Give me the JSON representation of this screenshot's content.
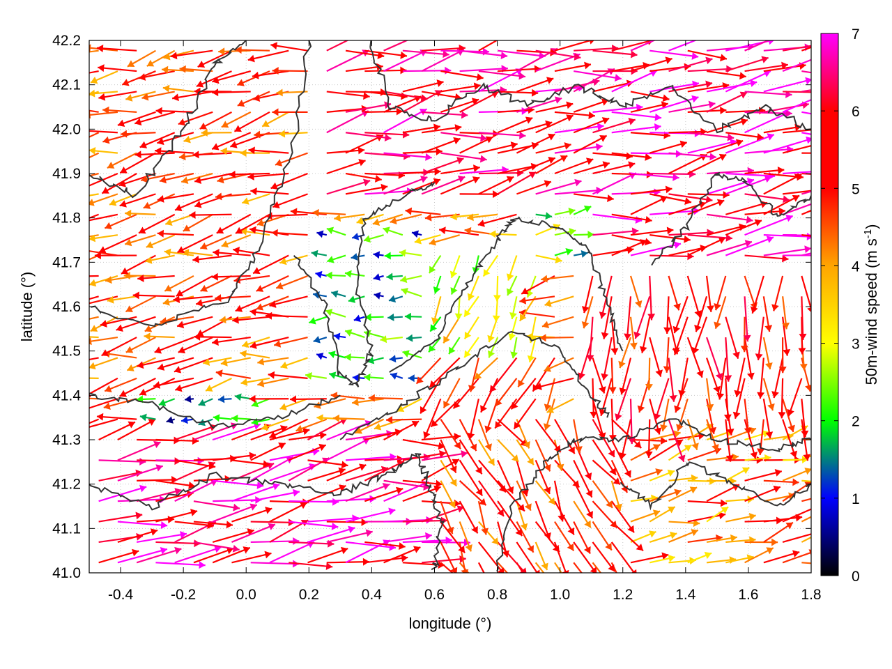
{
  "chart_data": {
    "type": "quiver",
    "xlabel": "longitude (°)",
    "ylabel": "latitude (°)",
    "xlim": [
      -0.5,
      1.8
    ],
    "ylim": [
      41.0,
      42.2
    ],
    "xticks": [
      -0.4,
      -0.2,
      0.0,
      0.2,
      0.4,
      0.6,
      0.8,
      1.0,
      1.2,
      1.4,
      1.6,
      1.8
    ],
    "xtick_labels": [
      "-0.4",
      "-0.2",
      "0.0",
      "0.2",
      "0.4",
      "0.6",
      "0.8",
      "1.0",
      "1.2",
      "1.4",
      "1.6",
      "1.8"
    ],
    "yticks": [
      41.0,
      41.1,
      41.2,
      41.3,
      41.4,
      41.5,
      41.6,
      41.7,
      41.8,
      41.9,
      42.0,
      42.1,
      42.2
    ],
    "ytick_labels": [
      "41.0",
      "41.1",
      "41.2",
      "41.3",
      "41.4",
      "41.5",
      "41.6",
      "41.7",
      "41.8",
      "41.9",
      "42.0",
      "42.1",
      "42.2"
    ],
    "grid": true,
    "colorbar": {
      "label": "50m-wind speed (m s",
      "label_exponent": "-1",
      "label_close": ")",
      "range": [
        0,
        7
      ],
      "ticks": [
        0,
        1,
        2,
        3,
        4,
        5,
        6,
        7
      ],
      "tick_labels": [
        "0",
        "1",
        "2",
        "3",
        "4",
        "5",
        "6",
        "7"
      ],
      "colormap": [
        "#000000",
        "#0000ff",
        "#00ff00",
        "#ffff00",
        "#ffa500",
        "#ff0000",
        "#ff00ff"
      ]
    },
    "contour_color": "#333333",
    "vectors_summary": {
      "description_free": true,
      "regions": [
        {
          "lon": [
            -0.5,
            0.3
          ],
          "lat": [
            41.0,
            42.2
          ],
          "dir_deg": 190,
          "speed": 4.8
        },
        {
          "lon": [
            -0.3,
            0.1
          ],
          "lat": [
            41.28,
            41.4
          ],
          "dir_deg": 185,
          "speed": 1.3
        },
        {
          "lon": [
            0.25,
            0.6
          ],
          "lat": [
            41.4,
            41.8
          ],
          "dir_deg": 180,
          "speed": 1.8
        },
        {
          "lon": [
            0.6,
            0.95
          ],
          "lat": [
            41.45,
            41.75
          ],
          "dir_deg": 250,
          "speed": 3.0
        },
        {
          "lon": [
            0.6,
            1.0
          ],
          "lat": [
            41.3,
            41.5
          ],
          "dir_deg": 240,
          "speed": 5.2
        },
        {
          "lon": [
            0.9,
            1.3
          ],
          "lat": [
            41.7,
            41.85
          ],
          "dir_deg": 5,
          "speed": 2.5
        },
        {
          "lon": [
            0.2,
            1.1
          ],
          "lat": [
            41.85,
            42.2
          ],
          "dir_deg": 10,
          "speed": 6.0
        },
        {
          "lon": [
            1.1,
            1.8
          ],
          "lat": [
            41.7,
            42.2
          ],
          "dir_deg": 8,
          "speed": 6.3
        },
        {
          "lon": [
            1.1,
            1.8
          ],
          "lat": [
            41.3,
            41.7
          ],
          "dir_deg": 270,
          "speed": 5.3
        },
        {
          "lon": [
            1.2,
            1.8
          ],
          "lat": [
            41.0,
            41.3
          ],
          "dir_deg": 15,
          "speed": 4.3
        },
        {
          "lon": [
            -0.5,
            0.6
          ],
          "lat": [
            41.0,
            41.3
          ],
          "dir_deg": 10,
          "speed": 6.2
        },
        {
          "lon": [
            0.6,
            1.2
          ],
          "lat": [
            41.0,
            41.35
          ],
          "dir_deg": 300,
          "speed": 5.0
        }
      ]
    }
  }
}
